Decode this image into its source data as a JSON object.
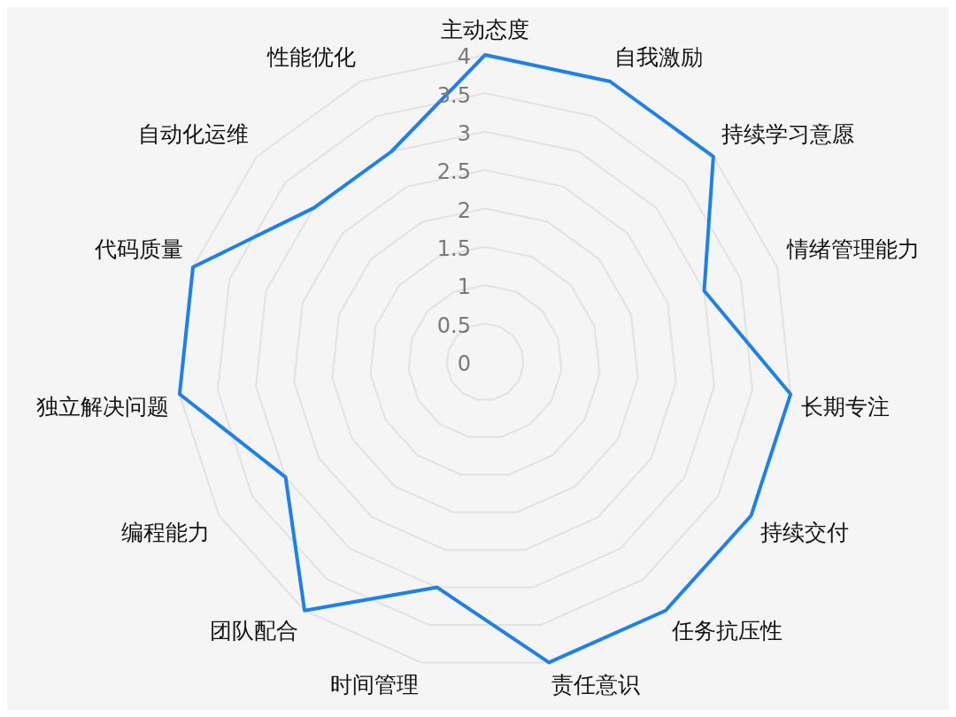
{
  "chart_data": {
    "type": "radar",
    "categories": [
      "主动态度",
      "自我激励",
      "持续学习意愿",
      "情绪管理能力",
      "长期专注",
      "持续交付",
      "任务抗压性",
      "责任意识",
      "时间管理",
      "团队配合",
      "编程能力",
      "独立解决问题",
      "代码质量",
      "自动化运维",
      "性能优化"
    ],
    "series": [
      {
        "color": "#1e80ea",
        "values": [
          4,
          4,
          4,
          3,
          4,
          4,
          4,
          4,
          3,
          4,
          3,
          4,
          4,
          3,
          3
        ]
      }
    ],
    "ylim": [
      0,
      4
    ],
    "yticks": [
      0,
      0.5,
      1,
      1.5,
      2,
      2.5,
      3,
      3.5,
      4
    ],
    "grid": true,
    "legend": false,
    "marker": "none",
    "line_style": "solid"
  }
}
